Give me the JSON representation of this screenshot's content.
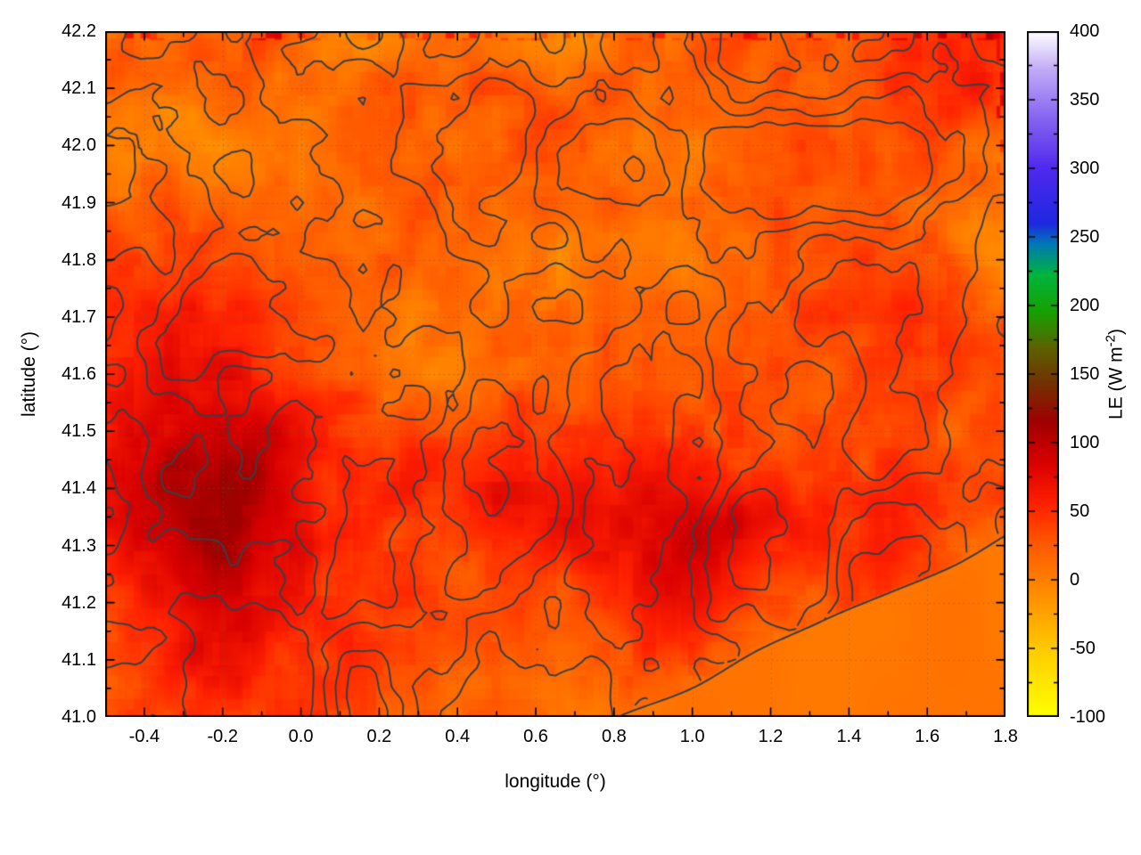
{
  "chart_data": {
    "type": "heatmap",
    "title": "",
    "xlabel": "longitude (°)",
    "ylabel": "latitude (°)",
    "x_range": [
      -0.5,
      1.8
    ],
    "y_range": [
      41.0,
      42.2
    ],
    "x_minor_step": 0.1,
    "y_minor_step": 0.05,
    "grid": {
      "show": true,
      "style": "dotted",
      "color": "rgba(90,90,90,0.45)"
    },
    "x_ticks": [
      {
        "v": -0.4,
        "label": "-0.4"
      },
      {
        "v": -0.2,
        "label": "-0.2"
      },
      {
        "v": 0.0,
        "label": "0.0"
      },
      {
        "v": 0.2,
        "label": "0.2"
      },
      {
        "v": 0.4,
        "label": "0.4"
      },
      {
        "v": 0.6,
        "label": "0.6"
      },
      {
        "v": 0.8,
        "label": "0.8"
      },
      {
        "v": 1.0,
        "label": "1.0"
      },
      {
        "v": 1.2,
        "label": "1.2"
      },
      {
        "v": 1.4,
        "label": "1.4"
      },
      {
        "v": 1.6,
        "label": "1.6"
      },
      {
        "v": 1.8,
        "label": "1.8"
      }
    ],
    "y_ticks": [
      {
        "v": 41.0,
        "label": "41.0"
      },
      {
        "v": 41.1,
        "label": "41.1"
      },
      {
        "v": 41.2,
        "label": "41.2"
      },
      {
        "v": 41.3,
        "label": "41.3"
      },
      {
        "v": 41.4,
        "label": "41.4"
      },
      {
        "v": 41.5,
        "label": "41.5"
      },
      {
        "v": 41.6,
        "label": "41.6"
      },
      {
        "v": 41.7,
        "label": "41.7"
      },
      {
        "v": 41.8,
        "label": "41.8"
      },
      {
        "v": 41.9,
        "label": "41.9"
      },
      {
        "v": 42.0,
        "label": "42.0"
      },
      {
        "v": 42.1,
        "label": "42.1"
      },
      {
        "v": 42.2,
        "label": "42.2"
      }
    ],
    "colorbar": {
      "label_prefix": "LE (W m",
      "label_sup": "-2",
      "label_suffix": ")",
      "range": [
        -100,
        400
      ],
      "minor_step": 25,
      "ticks": [
        {
          "v": -100,
          "label": "-100"
        },
        {
          "v": -50,
          "label": "-50"
        },
        {
          "v": 0,
          "label": "0"
        },
        {
          "v": 50,
          "label": "50"
        },
        {
          "v": 100,
          "label": "100"
        },
        {
          "v": 150,
          "label": "150"
        },
        {
          "v": 200,
          "label": "200"
        },
        {
          "v": 250,
          "label": "250"
        },
        {
          "v": 300,
          "label": "300"
        },
        {
          "v": 350,
          "label": "350"
        },
        {
          "v": 400,
          "label": "400"
        }
      ],
      "palette": [
        {
          "v": -100,
          "c": "#ffff00"
        },
        {
          "v": -55,
          "c": "#ffd000"
        },
        {
          "v": -10,
          "c": "#ff8c00"
        },
        {
          "v": 25,
          "c": "#ff5a00"
        },
        {
          "v": 55,
          "c": "#ff2000"
        },
        {
          "v": 85,
          "c": "#d90000"
        },
        {
          "v": 115,
          "c": "#a00000"
        },
        {
          "v": 145,
          "c": "#703400"
        },
        {
          "v": 168,
          "c": "#5f5f00"
        },
        {
          "v": 195,
          "c": "#18a000"
        },
        {
          "v": 222,
          "c": "#00b43c"
        },
        {
          "v": 245,
          "c": "#0078b4"
        },
        {
          "v": 260,
          "c": "#1e28e0"
        },
        {
          "v": 300,
          "c": "#5028ee"
        },
        {
          "v": 338,
          "c": "#8866f0"
        },
        {
          "v": 372,
          "c": "#c0aaf6"
        },
        {
          "v": 400,
          "c": "#ffffff"
        }
      ]
    },
    "field": {
      "base": 16,
      "noise_scale": [
        8,
        6
      ],
      "noise_amp": 34,
      "speckle_amp": 16,
      "speckle_scale": 18,
      "speckle_quantize": 0.02,
      "seed": 11,
      "speckle_seed": 23,
      "edge_seed": 53,
      "clamp": [
        -70,
        130
      ],
      "blobs": [
        {
          "lon": -0.38,
          "lat": 41.52,
          "amp": 55,
          "rx": 0.26,
          "ry": 0.17
        },
        {
          "lon": -0.32,
          "lat": 41.28,
          "amp": 45,
          "rx": 0.3,
          "ry": 0.14
        },
        {
          "lon": -0.05,
          "lat": 41.42,
          "amp": 25,
          "rx": 0.22,
          "ry": 0.12
        },
        {
          "lon": 0.55,
          "lat": 41.42,
          "amp": 28,
          "rx": 0.16,
          "ry": 0.1
        },
        {
          "lon": 0.88,
          "lat": 41.3,
          "amp": 42,
          "rx": 0.2,
          "ry": 0.11
        },
        {
          "lon": 1.08,
          "lat": 41.32,
          "amp": 36,
          "rx": 0.14,
          "ry": 0.09
        },
        {
          "lon": 1.45,
          "lat": 41.27,
          "amp": 34,
          "rx": 0.16,
          "ry": 0.09
        },
        {
          "lon": 1.55,
          "lat": 41.62,
          "amp": 24,
          "rx": 0.13,
          "ry": 0.1
        },
        {
          "lon": 0.05,
          "lat": 41.06,
          "amp": 28,
          "rx": 0.35,
          "ry": 0.1
        },
        {
          "lon": 1.72,
          "lat": 42.13,
          "amp": 32,
          "rx": 0.14,
          "ry": 0.1
        }
      ]
    },
    "contours": {
      "levels": [
        -0.32,
        -0.12,
        0.08,
        0.28
      ],
      "color": "#3a3f45",
      "width": 2,
      "scale": [
        7,
        5
      ],
      "seed": 7,
      "octaves": 4
    },
    "sea": {
      "value": 5,
      "coast_start_lon": 0.82,
      "coast_end": [
        1.8,
        41.32
      ],
      "wiggle": 0.025,
      "seed": 41
    },
    "displayed_value_range": [
      -20,
      120
    ]
  }
}
